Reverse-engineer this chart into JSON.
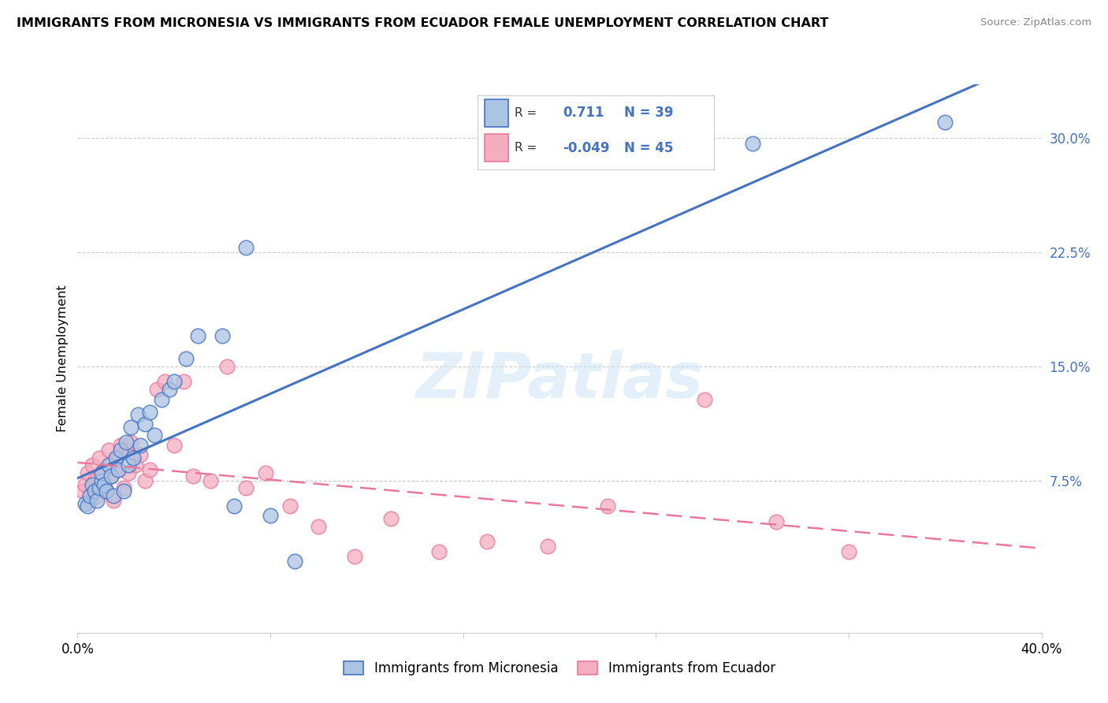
{
  "title": "IMMIGRANTS FROM MICRONESIA VS IMMIGRANTS FROM ECUADOR FEMALE UNEMPLOYMENT CORRELATION CHART",
  "source": "Source: ZipAtlas.com",
  "ylabel": "Female Unemployment",
  "right_yticks": [
    "30.0%",
    "22.5%",
    "15.0%",
    "7.5%"
  ],
  "right_ytick_vals": [
    0.3,
    0.225,
    0.15,
    0.075
  ],
  "xmin": 0.0,
  "xmax": 0.4,
  "ymin": -0.025,
  "ymax": 0.335,
  "r_micronesia": 0.711,
  "n_micronesia": 39,
  "r_ecuador": -0.049,
  "n_ecuador": 45,
  "color_micronesia": "#aac4e2",
  "color_ecuador": "#f5adc0",
  "color_micronesia_line": "#4472c4",
  "color_ecuador_line": "#e8789a",
  "color_text_blue": "#4472c4",
  "watermark": "ZIPatlas",
  "micronesia_x": [
    0.003,
    0.004,
    0.005,
    0.006,
    0.007,
    0.008,
    0.009,
    0.01,
    0.01,
    0.011,
    0.012,
    0.013,
    0.014,
    0.015,
    0.016,
    0.017,
    0.018,
    0.019,
    0.02,
    0.021,
    0.022,
    0.023,
    0.025,
    0.026,
    0.028,
    0.03,
    0.032,
    0.035,
    0.038,
    0.04,
    0.045,
    0.05,
    0.06,
    0.065,
    0.07,
    0.08,
    0.09,
    0.28,
    0.36
  ],
  "micronesia_y": [
    0.06,
    0.058,
    0.065,
    0.072,
    0.068,
    0.062,
    0.07,
    0.075,
    0.08,
    0.072,
    0.068,
    0.085,
    0.078,
    0.065,
    0.09,
    0.082,
    0.095,
    0.068,
    0.1,
    0.085,
    0.11,
    0.09,
    0.118,
    0.098,
    0.112,
    0.12,
    0.105,
    0.128,
    0.135,
    0.14,
    0.155,
    0.17,
    0.17,
    0.058,
    0.228,
    0.052,
    0.022,
    0.296,
    0.31
  ],
  "ecuador_x": [
    0.002,
    0.003,
    0.004,
    0.005,
    0.006,
    0.007,
    0.008,
    0.009,
    0.01,
    0.011,
    0.012,
    0.013,
    0.014,
    0.015,
    0.016,
    0.017,
    0.018,
    0.019,
    0.02,
    0.021,
    0.022,
    0.024,
    0.026,
    0.028,
    0.03,
    0.033,
    0.036,
    0.04,
    0.044,
    0.048,
    0.055,
    0.062,
    0.07,
    0.078,
    0.088,
    0.1,
    0.115,
    0.13,
    0.15,
    0.17,
    0.195,
    0.22,
    0.26,
    0.29,
    0.32
  ],
  "ecuador_y": [
    0.068,
    0.072,
    0.08,
    0.062,
    0.085,
    0.075,
    0.065,
    0.09,
    0.07,
    0.082,
    0.068,
    0.095,
    0.078,
    0.062,
    0.088,
    0.082,
    0.098,
    0.07,
    0.095,
    0.08,
    0.1,
    0.085,
    0.092,
    0.075,
    0.082,
    0.135,
    0.14,
    0.098,
    0.14,
    0.078,
    0.075,
    0.15,
    0.07,
    0.08,
    0.058,
    0.045,
    0.025,
    0.05,
    0.028,
    0.035,
    0.032,
    0.058,
    0.128,
    0.048,
    0.028
  ]
}
